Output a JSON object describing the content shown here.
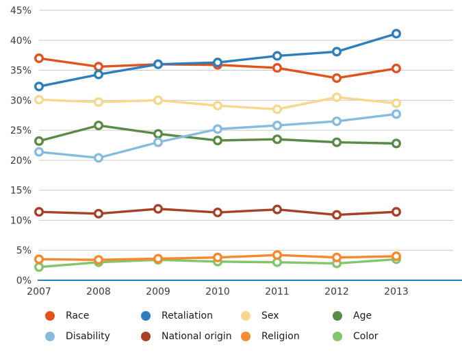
{
  "chart_data": {
    "type": "line",
    "x": [
      "2007",
      "2008",
      "2009",
      "2010",
      "2011",
      "2012",
      "2013"
    ],
    "series": [
      {
        "name": "Race",
        "color": "#E0531D",
        "values": [
          37.0,
          35.6,
          36.0,
          35.9,
          35.4,
          33.7,
          35.3
        ]
      },
      {
        "name": "Retaliation",
        "color": "#2E7EBC",
        "values": [
          32.3,
          34.3,
          36.0,
          36.3,
          37.4,
          38.1,
          41.1
        ]
      },
      {
        "name": "Sex",
        "color": "#F5D78E",
        "values": [
          30.1,
          29.7,
          30.0,
          29.1,
          28.5,
          30.5,
          29.5
        ]
      },
      {
        "name": "Age",
        "color": "#5A8B44",
        "values": [
          23.2,
          25.8,
          24.4,
          23.3,
          23.5,
          23.0,
          22.8
        ]
      },
      {
        "name": "Disability",
        "color": "#85BCDE",
        "values": [
          21.4,
          20.4,
          23.0,
          25.2,
          25.8,
          26.5,
          27.7
        ]
      },
      {
        "name": "National origin",
        "color": "#A64026",
        "values": [
          11.4,
          11.1,
          11.9,
          11.3,
          11.8,
          10.9,
          11.4
        ]
      },
      {
        "name": "Religion",
        "color": "#F7882C",
        "values": [
          3.5,
          3.4,
          3.6,
          3.8,
          4.2,
          3.8,
          4.0
        ]
      },
      {
        "name": "Color",
        "color": "#84C56B",
        "values": [
          2.2,
          3.0,
          3.4,
          3.1,
          3.0,
          2.8,
          3.5
        ]
      }
    ],
    "ytick_labels": [
      "0%",
      "5%",
      "10%",
      "15%",
      "20%",
      "25%",
      "30%",
      "35%",
      "40%",
      "45%"
    ],
    "ylim": [
      0,
      45
    ],
    "grid": true,
    "gridline_color": "#C9C9C9",
    "axis_line_color": "#2584BE",
    "tick_label_color": "#3a3a3a",
    "legend_position": "bottom",
    "title": "",
    "xlabel": "",
    "ylabel": ""
  }
}
